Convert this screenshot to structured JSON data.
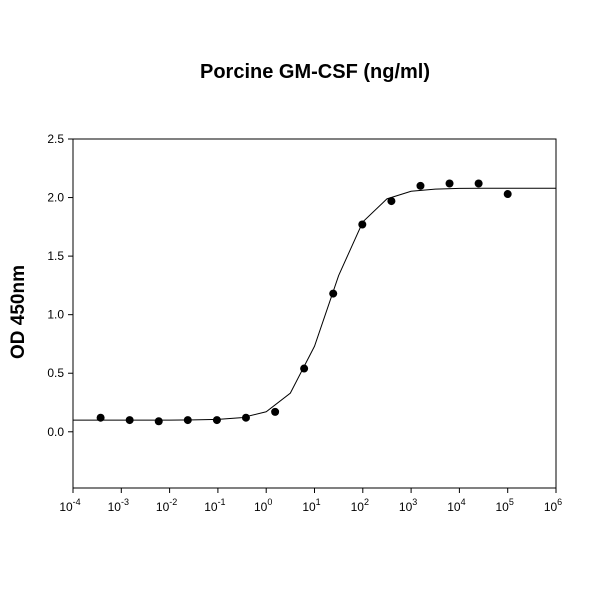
{
  "chart_data": {
    "type": "scatter",
    "title": "Porcine GM-CSF  (ng/ml)",
    "y_label": "OD 450nm",
    "log_x": true,
    "xlim": [
      0.0001,
      1000000
    ],
    "ylim": [
      -0.48,
      2.5
    ],
    "xticks": [
      {
        "value": 0.0001,
        "label": "10",
        "exponent": "-4"
      },
      {
        "value": 0.001,
        "label": "10",
        "exponent": "-3"
      },
      {
        "value": 0.01,
        "label": "10",
        "exponent": "-2"
      },
      {
        "value": 0.1,
        "label": "10",
        "exponent": "-1"
      },
      {
        "value": 1,
        "label": "10",
        "exponent": "0"
      },
      {
        "value": 10,
        "label": "10",
        "exponent": "1"
      },
      {
        "value": 100,
        "label": "10",
        "exponent": "2"
      },
      {
        "value": 1000,
        "label": "10",
        "exponent": "3"
      },
      {
        "value": 10000,
        "label": "10",
        "exponent": "4"
      },
      {
        "value": 100000,
        "label": "10",
        "exponent": "5"
      },
      {
        "value": 1000000,
        "label": "10",
        "exponent": "6"
      }
    ],
    "yticks": [
      {
        "value": 0,
        "label": "0.0"
      },
      0.5,
      {
        "value": 1,
        "label": "1.0"
      },
      1.5,
      {
        "value": 2,
        "label": "2.0"
      },
      2.5
    ],
    "grid": false,
    "series": [
      {
        "kind": "points",
        "color": "#000000",
        "x": [
          0.000373,
          0.00149,
          0.00596,
          0.0238,
          0.0954,
          0.381,
          1.53,
          6.1,
          24.4,
          97.7,
          391,
          1563,
          6250,
          25000,
          100000
        ],
        "values": [
          0.12,
          0.1,
          0.09,
          0.1,
          0.1,
          0.12,
          0.17,
          0.54,
          1.18,
          1.77,
          1.97,
          2.1,
          2.12,
          2.12,
          2.03
        ]
      },
      {
        "kind": "line",
        "color": "#000000",
        "x": [
          0.0001,
          0.000316,
          0.001,
          0.00316,
          0.01,
          0.0316,
          0.1,
          0.316,
          1,
          3.16,
          10,
          31.6,
          100,
          316,
          1000,
          3160,
          10000,
          31600,
          100000,
          316000,
          1000000
        ],
        "values": [
          0.1,
          0.1,
          0.1,
          0.1,
          0.1,
          0.102,
          0.106,
          0.121,
          0.171,
          0.33,
          0.73,
          1.334,
          1.792,
          1.989,
          2.054,
          2.072,
          2.078,
          2.079,
          2.08,
          2.08,
          2.08
        ]
      }
    ]
  }
}
